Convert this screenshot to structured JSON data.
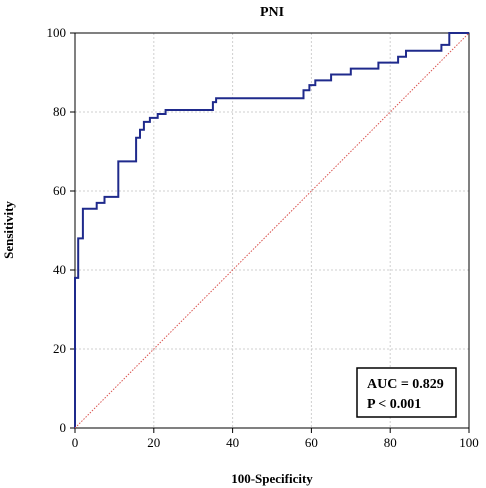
{
  "chart_data": {
    "type": "line",
    "title": "PNI",
    "xlabel": "100-Specificity",
    "ylabel": "Sensitivity",
    "xlim": [
      0,
      100
    ],
    "ylim": [
      0,
      100
    ],
    "xticks": [
      0,
      20,
      40,
      60,
      80,
      100
    ],
    "yticks": [
      0,
      20,
      40,
      60,
      80,
      100
    ],
    "grid": true,
    "series": [
      {
        "color": "#1f2a8c",
        "x": [
          0,
          0,
          0.8,
          0.8,
          2,
          2,
          5.5,
          5.5,
          7.5,
          7.5,
          11,
          11,
          15.5,
          15.5,
          16.5,
          16.5,
          17.5,
          17.5,
          19,
          19,
          21,
          21,
          23,
          23,
          35,
          35,
          35.8,
          35.8,
          58,
          58,
          59.5,
          59.5,
          61,
          61,
          65,
          65,
          70,
          70,
          77,
          77,
          82,
          82,
          84,
          84,
          93,
          93,
          95,
          95,
          100
        ],
        "y": [
          0,
          38,
          38,
          48,
          48,
          55.5,
          55.5,
          57,
          57,
          58.5,
          58.5,
          67.5,
          67.5,
          73.5,
          73.5,
          75.5,
          75.5,
          77.5,
          77.5,
          78.5,
          78.5,
          79.5,
          79.5,
          80.5,
          80.5,
          82.5,
          82.5,
          83.5,
          83.5,
          85.5,
          85.5,
          86.8,
          86.8,
          88,
          88,
          89.5,
          89.5,
          91,
          91,
          92.5,
          92.5,
          94,
          94,
          95.5,
          95.5,
          97,
          97,
          100,
          100
        ]
      },
      {
        "color": "#d9534f",
        "x": [
          0,
          100
        ],
        "y": [
          0,
          100
        ],
        "style": "dotted"
      }
    ],
    "annotation": {
      "lines": [
        "AUC = 0.829",
        "P < 0.001"
      ],
      "placement": "bottom-right"
    }
  }
}
